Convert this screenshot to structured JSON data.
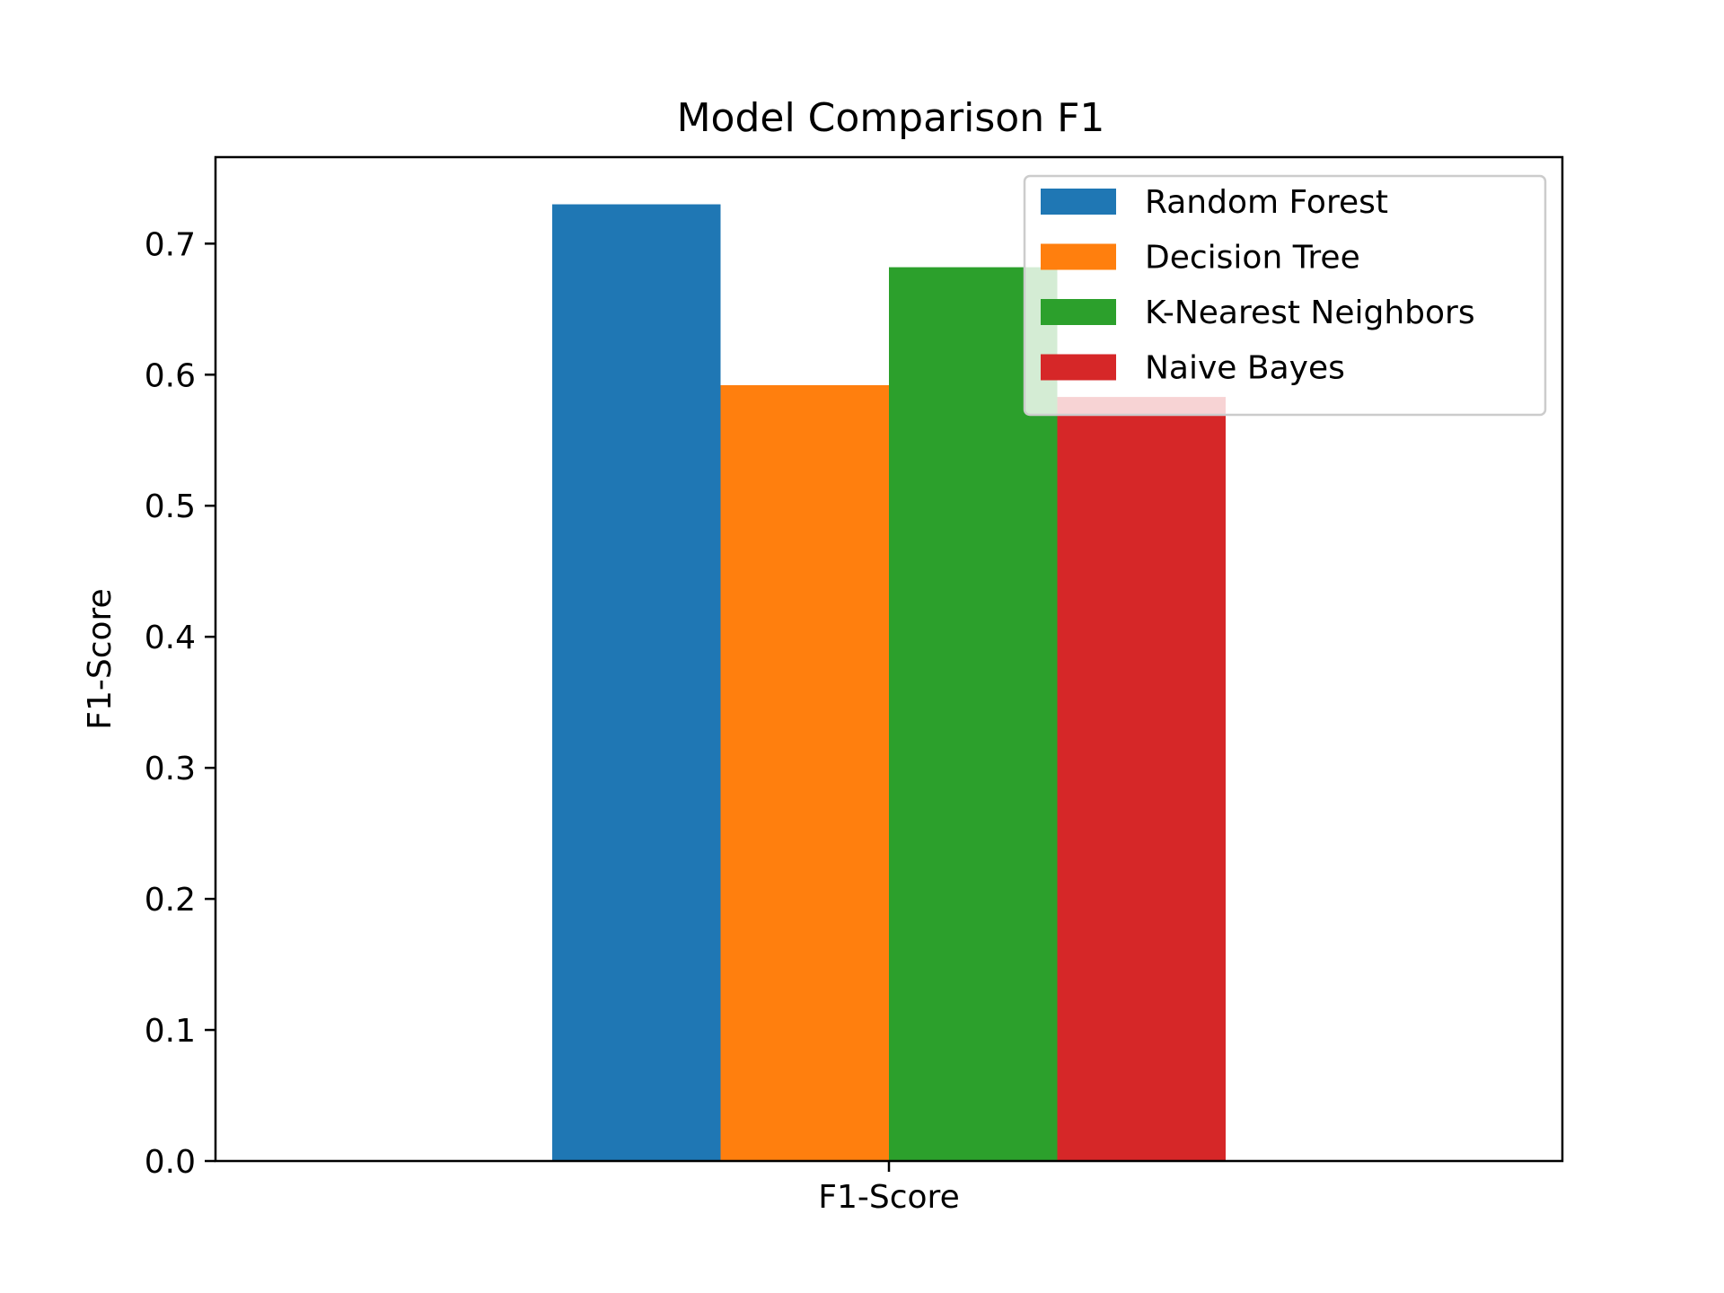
{
  "chart_data": {
    "type": "bar",
    "title": "Model Comparison F1",
    "xlabel": "",
    "ylabel": "F1-Score",
    "categories": [
      "F1-Score"
    ],
    "ylim": [
      0,
      0.766
    ],
    "yticks": [
      "0.0",
      "0.1",
      "0.2",
      "0.3",
      "0.4",
      "0.5",
      "0.6",
      "0.7"
    ],
    "grid": false,
    "legend_position": "top-right",
    "series": [
      {
        "name": "Random Forest",
        "values": [
          0.73
        ],
        "color": "#1f77b4"
      },
      {
        "name": "Decision Tree",
        "values": [
          0.592
        ],
        "color": "#ff7f0e"
      },
      {
        "name": "K-Nearest Neighbors",
        "values": [
          0.682
        ],
        "color": "#2ca02c"
      },
      {
        "name": "Naive Bayes",
        "values": [
          0.583
        ],
        "color": "#d62728"
      }
    ]
  }
}
